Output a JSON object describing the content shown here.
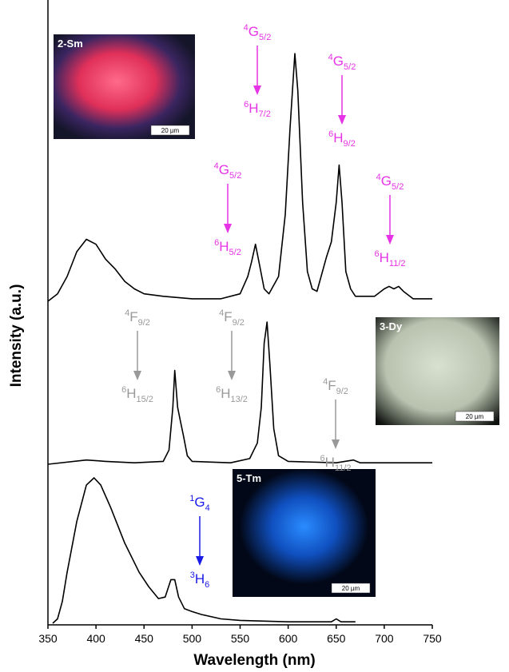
{
  "chart_data": [
    {
      "type": "line",
      "color": "#000000",
      "xlim": [
        350,
        750
      ],
      "ylim": [
        0,
        100
      ],
      "x": [
        350,
        360,
        370,
        380,
        390,
        400,
        410,
        420,
        430,
        440,
        450,
        470,
        500,
        530,
        550,
        558,
        562,
        566,
        570,
        575,
        580,
        590,
        597,
        602,
        607,
        610,
        615,
        620,
        625,
        630,
        640,
        645,
        650,
        653,
        656,
        660,
        665,
        670,
        690,
        700,
        705,
        710,
        715,
        720,
        730,
        750
      ],
      "values": [
        0,
        3,
        10,
        20,
        25,
        23,
        17,
        13,
        8,
        5,
        3,
        2,
        1,
        1,
        3,
        10,
        16,
        23,
        15,
        5,
        3,
        10,
        35,
        70,
        100,
        85,
        40,
        12,
        5,
        4,
        18,
        24,
        40,
        55,
        40,
        12,
        5,
        2,
        2,
        5,
        6,
        5,
        6,
        4,
        1,
        1
      ],
      "annotation_color": "#e633e6",
      "annotations": [
        {
          "upper": [
            "4",
            "G",
            "5/2"
          ],
          "lower": [
            "6",
            "H",
            "5/2"
          ]
        },
        {
          "upper": [
            "4",
            "G",
            "5/2"
          ],
          "lower": [
            "6",
            "H",
            "7/2"
          ]
        },
        {
          "upper": [
            "4",
            "G",
            "5/2"
          ],
          "lower": [
            "6",
            "H",
            "9/2"
          ]
        },
        {
          "upper": [
            "4",
            "G",
            "5/2"
          ],
          "lower": [
            "6",
            "H",
            "11/2"
          ]
        }
      ],
      "inset": {
        "label": "2-Sm",
        "scale": "20 µm"
      }
    },
    {
      "type": "line",
      "color": "#000000",
      "xlim": [
        350,
        750
      ],
      "ylim": [
        0,
        100
      ],
      "x": [
        350,
        390,
        410,
        440,
        470,
        476,
        480,
        482,
        485,
        488,
        491,
        495,
        500,
        540,
        560,
        568,
        572,
        575,
        578,
        581,
        585,
        590,
        600,
        650,
        668,
        675,
        750
      ],
      "values": [
        0,
        3,
        2,
        1,
        2,
        10,
        40,
        66,
        40,
        30,
        20,
        6,
        2,
        1,
        4,
        15,
        40,
        85,
        100,
        70,
        25,
        6,
        2,
        1,
        3,
        1,
        1
      ],
      "ylabel": "Intensity (a.u.)",
      "annotation_color": "#999999",
      "annotations": [
        {
          "upper": [
            "4",
            "F",
            "9/2"
          ],
          "lower": [
            "6",
            "H",
            "15/2"
          ]
        },
        {
          "upper": [
            "4",
            "F",
            "9/2"
          ],
          "lower": [
            "6",
            "H",
            "13/2"
          ]
        },
        {
          "upper": [
            "4",
            "F",
            "9/2"
          ],
          "lower": [
            "6",
            "H",
            "11/2"
          ]
        }
      ],
      "inset": {
        "label": "3-Dy",
        "scale": "20 µm"
      }
    },
    {
      "type": "line",
      "color": "#000000",
      "xlim": [
        350,
        750
      ],
      "ylim": [
        0,
        100
      ],
      "x": [
        355,
        360,
        365,
        370,
        380,
        390,
        398,
        405,
        415,
        430,
        445,
        455,
        465,
        472,
        478,
        482,
        486,
        492,
        500,
        510,
        530,
        550,
        600,
        645,
        650,
        655,
        670
      ],
      "values": [
        0,
        3,
        15,
        35,
        70,
        95,
        100,
        95,
        80,
        55,
        35,
        25,
        17,
        18,
        30,
        30,
        18,
        10,
        8,
        6,
        3,
        2,
        1,
        1,
        3,
        1,
        1
      ],
      "xticks": [
        350,
        400,
        450,
        500,
        550,
        600,
        650,
        700,
        750
      ],
      "xlabel": "Wavelength (nm)",
      "annotation_color": "#1a1ae6",
      "annotations": [
        {
          "upper": [
            "1",
            "G",
            "4"
          ],
          "lower": [
            "3",
            "H",
            "6"
          ]
        }
      ],
      "inset": {
        "label": "5-Tm",
        "scale": "20 µm"
      }
    }
  ]
}
